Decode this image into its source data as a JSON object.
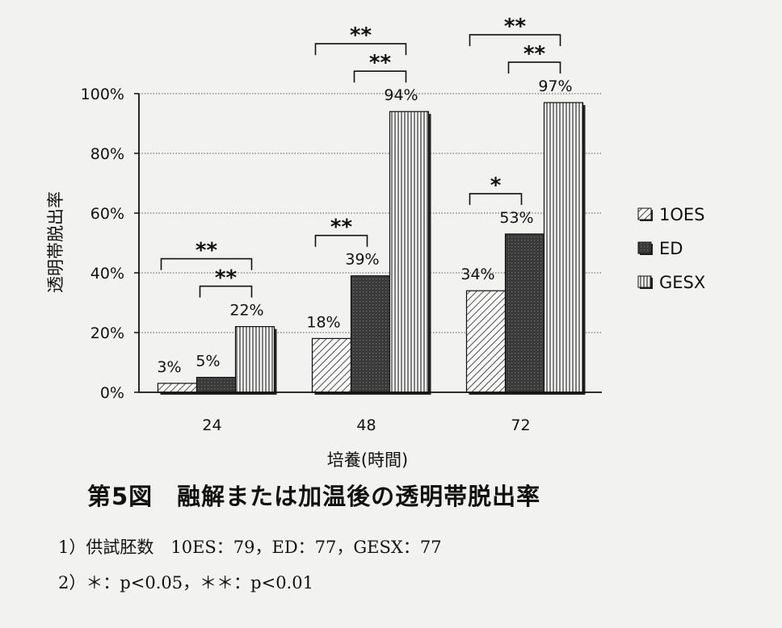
{
  "chart_data": {
    "type": "bar",
    "title": "",
    "xlabel": "培養(時間)",
    "ylabel": "透明帯脱出率",
    "categories": [
      "24",
      "48",
      "72"
    ],
    "ylim": [
      0,
      100
    ],
    "yticks": [
      "0%",
      "20%",
      "40%",
      "60%",
      "80%",
      "100%"
    ],
    "ytick_values": [
      0,
      20,
      40,
      60,
      80,
      100
    ],
    "grid": true,
    "legend_position": "right",
    "series": [
      {
        "name": "1OES",
        "values": [
          3,
          18,
          34
        ],
        "labels": [
          "3%",
          "18%",
          "34%"
        ],
        "pattern": "diagonal-hatch"
      },
      {
        "name": "ED",
        "values": [
          5,
          39,
          53
        ],
        "labels": [
          "5%",
          "39%",
          "53%"
        ],
        "pattern": "dark-fill"
      },
      {
        "name": "GESX",
        "values": [
          22,
          94,
          97
        ],
        "labels": [
          "22%",
          "94%",
          "97%"
        ],
        "pattern": "vertical-lines"
      }
    ],
    "significance": [
      {
        "category": 0,
        "from": 0,
        "to": 2,
        "label": "**",
        "level": 2
      },
      {
        "category": 0,
        "from": 1,
        "to": 2,
        "label": "**",
        "level": 1
      },
      {
        "category": 1,
        "from": 0,
        "to": 1,
        "label": "**",
        "level": 1
      },
      {
        "category": 1,
        "from": 0,
        "to": 2,
        "label": "**",
        "level": 2
      },
      {
        "category": 1,
        "from": 1,
        "to": 2,
        "label": "**",
        "level": 1
      },
      {
        "category": 2,
        "from": 0,
        "to": 1,
        "label": "*",
        "level": 1
      },
      {
        "category": 2,
        "from": 0,
        "to": 2,
        "label": "**",
        "level": 2
      },
      {
        "category": 2,
        "from": 1,
        "to": 2,
        "label": "**",
        "level": 1
      }
    ]
  },
  "caption": "第5図　融解または加温後の透明帯脱出率",
  "notes": {
    "note1": "1）供試胚数　10ES：79，ED：77，GESX：77",
    "note2": "2）＊：p<0.05，＊＊：p<0.01"
  }
}
